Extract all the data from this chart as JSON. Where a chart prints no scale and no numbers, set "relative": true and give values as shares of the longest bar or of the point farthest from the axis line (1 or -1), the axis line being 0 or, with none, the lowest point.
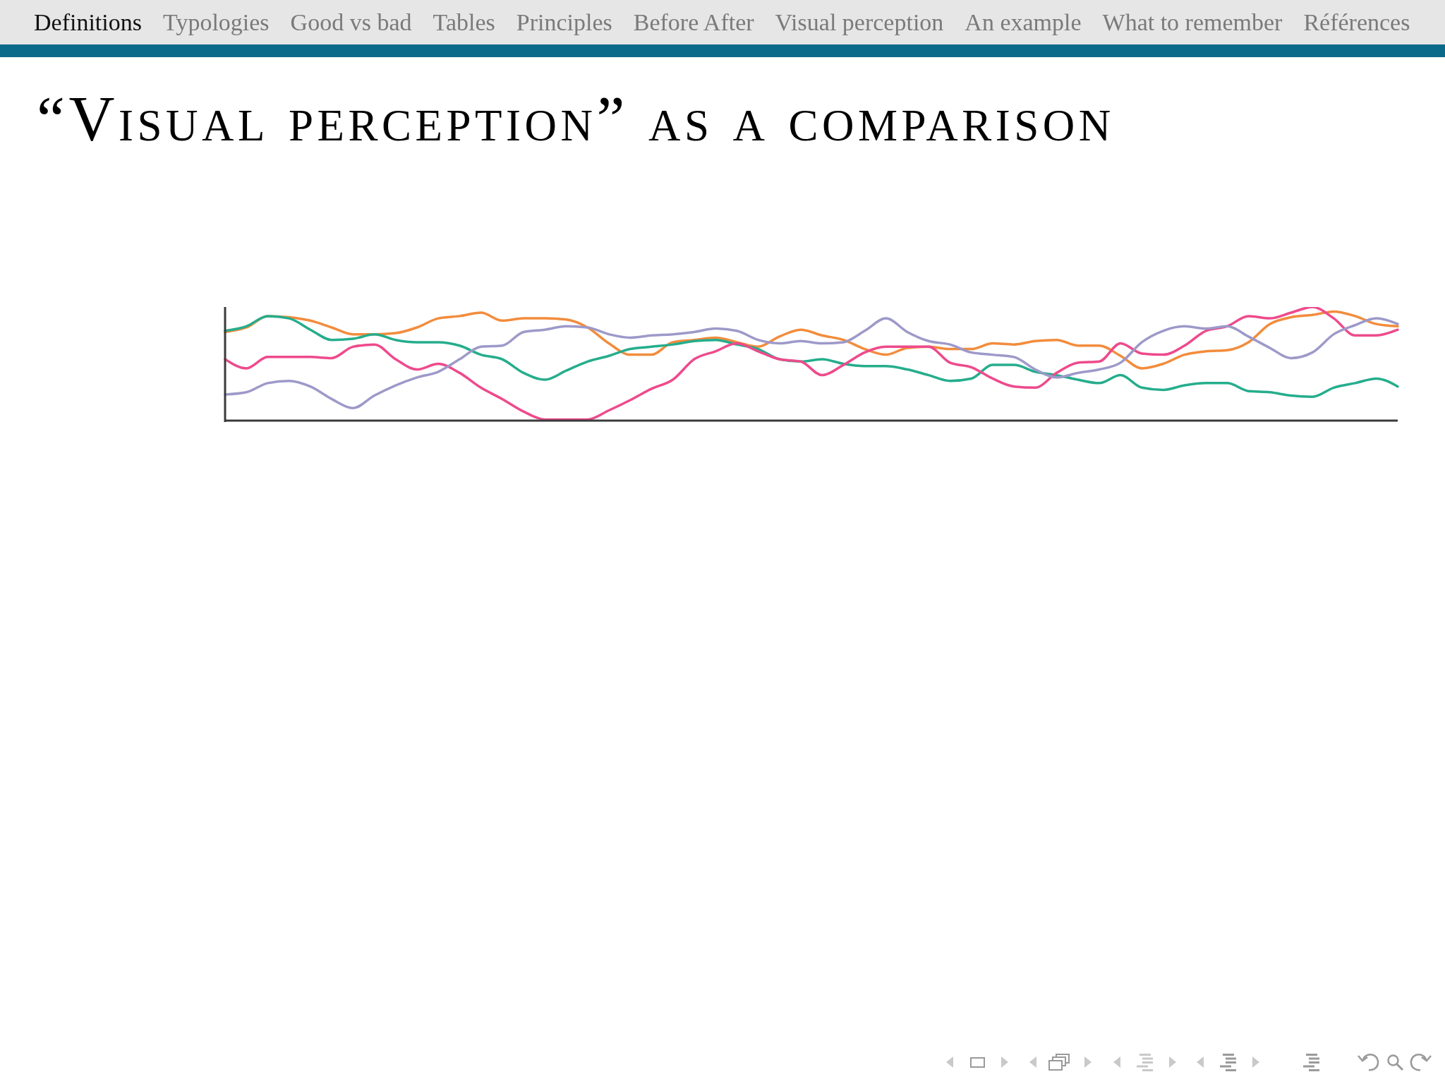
{
  "chart_data": {
    "type": "line",
    "title": "“Visual perception” as a comparison",
    "annotations": [
      "Definitions",
      "Typologies",
      "Good vs bad",
      "Tables",
      "Principles",
      "Before After",
      "Visual perception",
      "An example",
      "What to remember",
      "Références"
    ],
    "relative": true,
    "tick_labels": false,
    "categories": [
      null,
      null,
      null,
      null,
      null,
      null,
      null,
      null,
      null,
      null,
      null,
      null,
      null,
      null,
      null,
      null,
      null,
      null,
      null,
      null,
      null,
      null,
      null,
      null,
      null,
      null,
      null,
      null,
      null,
      null,
      null,
      null,
      null,
      null,
      null,
      null,
      null,
      null,
      null,
      null,
      null,
      null,
      null,
      null,
      null,
      null,
      null,
      null,
      null,
      null,
      null,
      null,
      null,
      null,
      null,
      null
    ],
    "series": [
      {
        "color": "#f28c3c",
        "values": [
          0.78,
          0.82,
          0.92,
          0.91,
          0.88,
          0.82,
          0.76,
          0.76,
          0.77,
          0.82,
          0.9,
          0.92,
          0.95,
          0.88,
          0.9,
          0.9,
          0.89,
          0.82,
          0.68,
          0.58,
          0.58,
          0.69,
          0.71,
          0.73,
          0.69,
          0.65,
          0.74,
          0.8,
          0.75,
          0.71,
          0.63,
          0.58,
          0.64,
          0.65,
          0.63,
          0.63,
          0.68,
          0.67,
          0.7,
          0.71,
          0.66,
          0.66,
          0.57,
          0.46,
          0.5,
          0.58,
          0.61,
          0.62,
          0.69,
          0.85,
          0.91,
          0.93,
          0.96,
          0.92,
          0.85,
          0.83
        ]
      },
      {
        "color": "#25ad8c",
        "values": [
          0.79,
          0.83,
          0.92,
          0.9,
          0.8,
          0.71,
          0.72,
          0.76,
          0.71,
          0.69,
          0.69,
          0.66,
          0.58,
          0.54,
          0.42,
          0.36,
          0.44,
          0.52,
          0.57,
          0.63,
          0.65,
          0.67,
          0.7,
          0.71,
          0.67,
          0.63,
          0.54,
          0.52,
          0.54,
          0.5,
          0.48,
          0.48,
          0.45,
          0.4,
          0.35,
          0.37,
          0.49,
          0.49,
          0.43,
          0.4,
          0.36,
          0.33,
          0.4,
          0.29,
          0.27,
          0.31,
          0.33,
          0.33,
          0.26,
          0.25,
          0.22,
          0.21,
          0.29,
          0.33,
          0.37,
          0.3
        ]
      },
      {
        "color": "#ee4a8c",
        "values": [
          0.54,
          0.46,
          0.56,
          0.56,
          0.56,
          0.55,
          0.65,
          0.67,
          0.54,
          0.45,
          0.5,
          0.42,
          0.29,
          0.19,
          0.08,
          0.01,
          0.01,
          0.01,
          0.09,
          0.18,
          0.28,
          0.36,
          0.54,
          0.61,
          0.68,
          0.61,
          0.54,
          0.52,
          0.4,
          0.49,
          0.6,
          0.65,
          0.65,
          0.65,
          0.51,
          0.47,
          0.37,
          0.3,
          0.29,
          0.42,
          0.51,
          0.52,
          0.68,
          0.59,
          0.58,
          0.66,
          0.79,
          0.83,
          0.92,
          0.9,
          0.95,
          1.0,
          0.9,
          0.75,
          0.75,
          0.8
        ]
      },
      {
        "color": "#9d99c9",
        "values": [
          0.23,
          0.25,
          0.33,
          0.35,
          0.3,
          0.19,
          0.11,
          0.22,
          0.31,
          0.38,
          0.43,
          0.54,
          0.65,
          0.66,
          0.78,
          0.8,
          0.83,
          0.82,
          0.76,
          0.73,
          0.75,
          0.76,
          0.78,
          0.81,
          0.79,
          0.71,
          0.68,
          0.7,
          0.68,
          0.69,
          0.79,
          0.9,
          0.78,
          0.7,
          0.67,
          0.6,
          0.58,
          0.56,
          0.45,
          0.38,
          0.42,
          0.45,
          0.51,
          0.69,
          0.79,
          0.83,
          0.81,
          0.83,
          0.74,
          0.64,
          0.55,
          0.6,
          0.76,
          0.84,
          0.9,
          0.85
        ]
      }
    ]
  }
}
